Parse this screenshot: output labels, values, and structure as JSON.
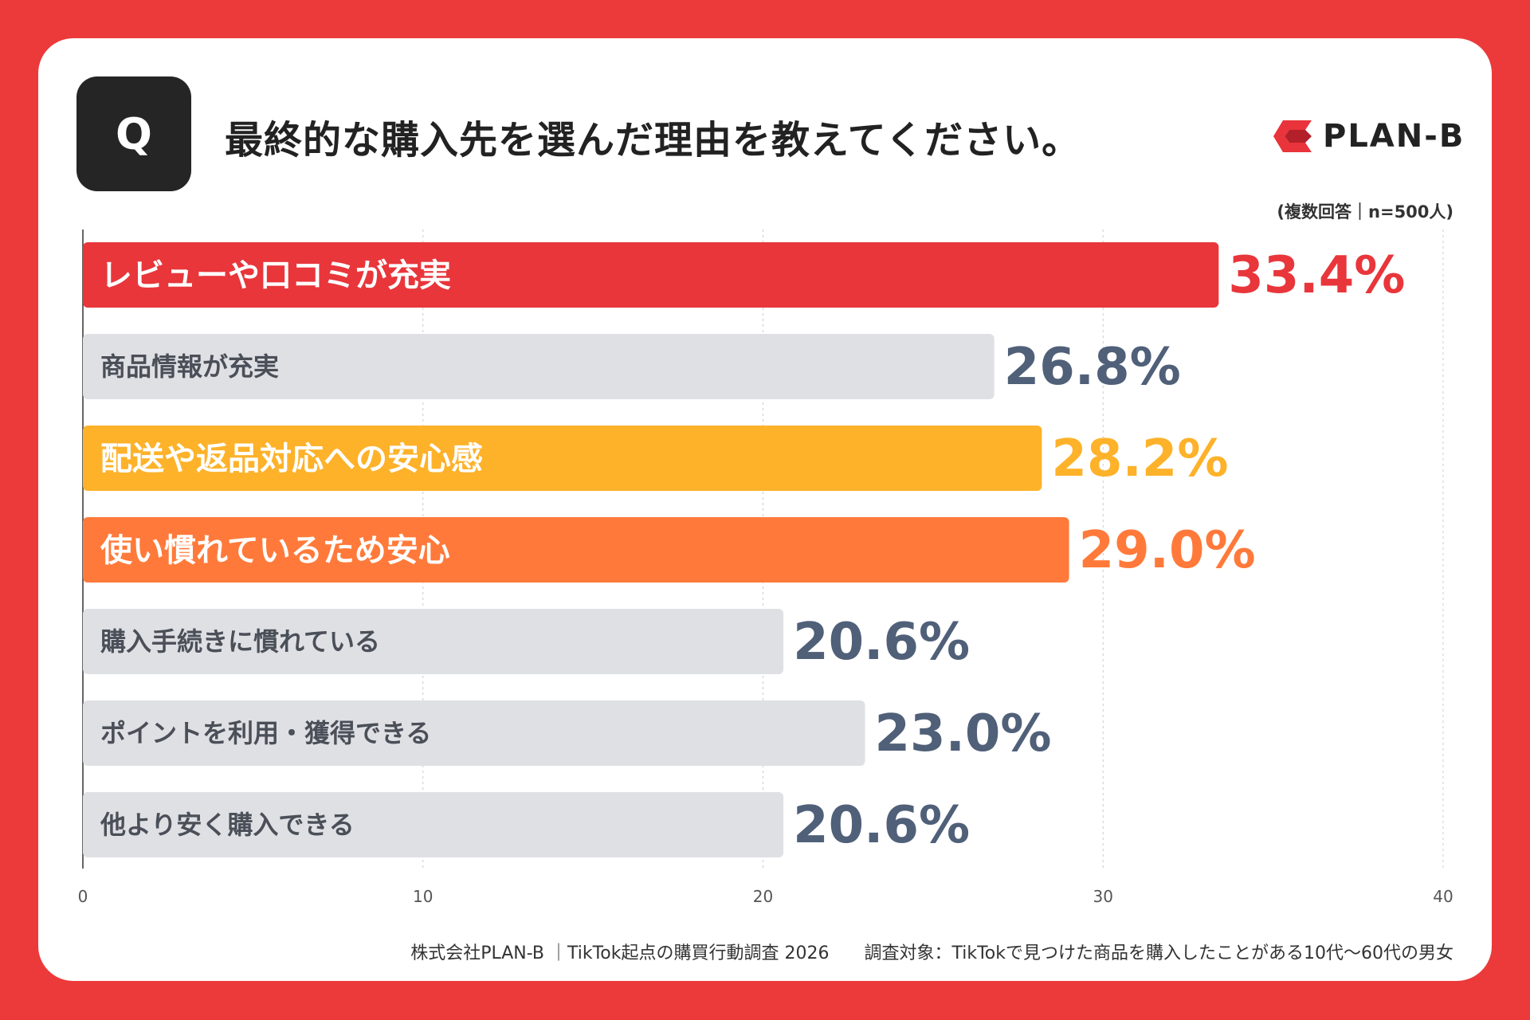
{
  "header": {
    "q_label": "Q",
    "title": "最終的な購入先を選んだ理由を教えてください。",
    "note": "(複数回答｜n=500人)"
  },
  "logo": {
    "text": "PLAN-B",
    "icon": "plan-b-logo-icon",
    "color": "#e8343a"
  },
  "footer": {
    "source": "株式会社PLAN-B ｜TikTok起点の購買行動調査 2026",
    "target": "調査対象：TikTokで見つけた商品を購入したことがある10代〜60代の男女"
  },
  "colors": {
    "background": "#ec3a3b",
    "red": "#e8363b",
    "yellow": "#fdb22a",
    "orange": "#ff7a3a",
    "gray_bar": "#dfe0e4",
    "gray_value": "#506079",
    "gray_label": "#4a4f58"
  },
  "chart_data": {
    "type": "bar",
    "orientation": "horizontal",
    "categories": [
      "レビューや口コミが充実",
      "商品情報が充実",
      "配送や返品対応への安心感",
      "使い慣れているため安心",
      "購入手続きに慣れている",
      "ポイントを利用・獲得できる",
      "他より安く購入できる"
    ],
    "values": [
      33.4,
      26.8,
      28.2,
      29.0,
      20.6,
      23.0,
      20.6
    ],
    "value_labels": [
      "33.4%",
      "26.8%",
      "28.2%",
      "29.0%",
      "20.6%",
      "23.0%",
      "20.6%"
    ],
    "highlight": [
      "red",
      "gray",
      "yellow",
      "orange",
      "gray",
      "gray",
      "gray"
    ],
    "xlim": [
      0,
      40
    ],
    "xticks": [
      0,
      10,
      20,
      30,
      40
    ],
    "tick_labels": [
      "0",
      "10",
      "20",
      "30",
      "40"
    ],
    "grid": true,
    "legend": "none"
  }
}
